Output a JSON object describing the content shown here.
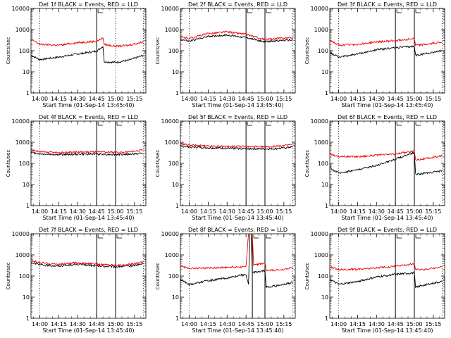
{
  "page": {
    "xtick_labels": [
      "14:00",
      "14:15",
      "14:30",
      "14:45",
      "15:00",
      "15:15"
    ],
    "y_axis_label": "Counts/sec",
    "x_axis_label": "Start Time (01-Sep-14 13:45:40)"
  },
  "chart_data": [
    {
      "type": "line",
      "title": "Det 1f BLACK = Events, RED = LLD",
      "xlabel": "Start Time (01-Sep-14 13:45:40)",
      "ylabel": "Counts/sec",
      "yscale": "log",
      "ylim": [
        1,
        10000
      ],
      "xlim": [
        "13:53",
        "15:24"
      ],
      "ytick_labels": [
        "1",
        "10",
        "100",
        "1000",
        "10000"
      ],
      "xtick_labels": [
        "14:00",
        "14:15",
        "14:30",
        "14:45",
        "15:00",
        "15:15"
      ],
      "dotted_lines": [
        "14:00",
        "15:00",
        "15:22"
      ],
      "solid_lines": [
        "14:45"
      ],
      "series": [
        {
          "color": "#000000",
          "x": [
            "13:53",
            "14:00",
            "14:15",
            "14:30",
            "14:45",
            "14:50",
            "14:51",
            "15:00",
            "15:10",
            "15:22"
          ],
          "y": [
            60,
            38,
            50,
            70,
            95,
            160,
            30,
            28,
            35,
            60
          ]
        },
        {
          "color": "#ee0000",
          "x": [
            "13:53",
            "14:00",
            "14:15",
            "14:30",
            "14:45",
            "14:50",
            "14:51",
            "15:00",
            "15:10",
            "15:22"
          ],
          "y": [
            350,
            200,
            180,
            240,
            280,
            400,
            200,
            160,
            180,
            260
          ]
        }
      ]
    },
    {
      "type": "line",
      "title": "Det 2f BLACK = Events, RED = LLD",
      "xlabel": "Start Time (01-Sep-14 13:45:40)",
      "ylabel": "Counts/sec",
      "yscale": "log",
      "ylim": [
        1,
        10000
      ],
      "xlim": [
        "13:53",
        "15:24"
      ],
      "ytick_labels": [
        "1",
        "10",
        "100",
        "1000",
        "10000"
      ],
      "xtick_labels": [
        "14:00",
        "14:15",
        "14:30",
        "14:45",
        "15:00",
        "15:15"
      ],
      "dotted_lines": [
        "14:00",
        "15:22"
      ],
      "solid_lines": [
        "14:45",
        "15:00"
      ],
      "series": [
        {
          "color": "#000000",
          "x": [
            "13:53",
            "14:00",
            "14:15",
            "14:30",
            "14:45",
            "15:00",
            "15:10",
            "15:22"
          ],
          "y": [
            350,
            280,
            480,
            550,
            420,
            260,
            300,
            320
          ]
        },
        {
          "color": "#ee0000",
          "x": [
            "13:53",
            "14:00",
            "14:15",
            "14:30",
            "14:45",
            "15:00",
            "15:10",
            "15:22"
          ],
          "y": [
            450,
            380,
            650,
            780,
            600,
            330,
            380,
            420
          ]
        }
      ]
    },
    {
      "type": "line",
      "title": "Det 3f BLACK = Events, RED = LLD",
      "xlabel": "Start Time (01-Sep-14 13:45:40)",
      "ylabel": "Counts/sec",
      "yscale": "log",
      "ylim": [
        1,
        10000
      ],
      "xlim": [
        "13:53",
        "15:24"
      ],
      "ytick_labels": [
        "1",
        "10",
        "100",
        "1000",
        "10000"
      ],
      "xtick_labels": [
        "14:00",
        "14:15",
        "14:30",
        "14:45",
        "15:00",
        "15:15"
      ],
      "dotted_lines": [
        "14:00",
        "15:22"
      ],
      "solid_lines": [
        "14:45",
        "15:00"
      ],
      "series": [
        {
          "color": "#000000",
          "x": [
            "13:53",
            "14:00",
            "14:15",
            "14:30",
            "14:45",
            "15:00",
            "15:01",
            "15:10",
            "15:22"
          ],
          "y": [
            80,
            50,
            70,
            110,
            140,
            160,
            60,
            75,
            100
          ]
        },
        {
          "color": "#ee0000",
          "x": [
            "13:53",
            "14:00",
            "14:15",
            "14:30",
            "14:45",
            "15:00",
            "15:01",
            "15:10",
            "15:22"
          ],
          "y": [
            320,
            180,
            200,
            260,
            300,
            380,
            180,
            200,
            260
          ]
        }
      ]
    },
    {
      "type": "line",
      "title": "Det 4f BLACK = Events, RED = LLD",
      "xlabel": "Start Time (01-Sep-14 13:45:40)",
      "ylabel": "Counts/sec",
      "yscale": "log",
      "ylim": [
        1,
        10000
      ],
      "xlim": [
        "13:53",
        "15:24"
      ],
      "ytick_labels": [
        "1",
        "10",
        "100",
        "1000",
        "10000"
      ],
      "xtick_labels": [
        "14:00",
        "14:15",
        "14:30",
        "14:45",
        "15:00",
        "15:15"
      ],
      "dotted_lines": [
        "14:00",
        "15:22"
      ],
      "solid_lines": [
        "14:45",
        "15:00"
      ],
      "series": [
        {
          "color": "#000000",
          "x": [
            "13:53",
            "14:00",
            "14:15",
            "14:30",
            "14:45",
            "15:00",
            "15:10",
            "15:22"
          ],
          "y": [
            330,
            280,
            260,
            270,
            280,
            260,
            270,
            300
          ]
        },
        {
          "color": "#ee0000",
          "x": [
            "13:53",
            "14:00",
            "14:15",
            "14:30",
            "14:45",
            "15:00",
            "15:10",
            "15:22"
          ],
          "y": [
            450,
            350,
            320,
            340,
            350,
            330,
            340,
            440
          ]
        }
      ]
    },
    {
      "type": "line",
      "title": "Det 5f BLACK = Events, RED = LLD",
      "xlabel": "Start Time (01-Sep-14 13:45:40)",
      "ylabel": "Counts/sec",
      "yscale": "log",
      "ylim": [
        1,
        10000
      ],
      "xlim": [
        "13:53",
        "15:24"
      ],
      "ytick_labels": [
        "1",
        "10",
        "100",
        "1000",
        "10000"
      ],
      "xtick_labels": [
        "14:00",
        "14:15",
        "14:30",
        "14:45",
        "15:00",
        "15:15"
      ],
      "dotted_lines": [
        "14:00",
        "15:22"
      ],
      "solid_lines": [
        "14:45",
        "15:00"
      ],
      "series": [
        {
          "color": "#000000",
          "x": [
            "13:53",
            "14:00",
            "14:15",
            "14:30",
            "14:45",
            "15:00",
            "15:10",
            "15:22"
          ],
          "y": [
            650,
            600,
            550,
            520,
            500,
            480,
            500,
            600
          ]
        },
        {
          "color": "#ee0000",
          "x": [
            "13:53",
            "14:00",
            "14:15",
            "14:30",
            "14:45",
            "15:00",
            "15:10",
            "15:22"
          ],
          "y": [
            850,
            750,
            650,
            630,
            620,
            600,
            640,
            800
          ]
        }
      ]
    },
    {
      "type": "line",
      "title": "Det 6f BLACK = Events, RED = LLD",
      "xlabel": "Start Time (01-Sep-14 13:45:40)",
      "ylabel": "Counts/sec",
      "yscale": "log",
      "ylim": [
        1,
        10000
      ],
      "xlim": [
        "13:53",
        "15:24"
      ],
      "ytick_labels": [
        "1",
        "10",
        "100",
        "1000",
        "10000"
      ],
      "xtick_labels": [
        "14:00",
        "14:15",
        "14:30",
        "14:45",
        "15:00",
        "15:15"
      ],
      "dotted_lines": [
        "14:00",
        "15:22"
      ],
      "solid_lines": [
        "14:45",
        "15:00"
      ],
      "series": [
        {
          "color": "#000000",
          "x": [
            "13:53",
            "14:00",
            "14:15",
            "14:30",
            "14:45",
            "15:00",
            "15:01",
            "15:10",
            "15:22"
          ],
          "y": [
            60,
            35,
            50,
            80,
            160,
            330,
            30,
            35,
            45
          ]
        },
        {
          "color": "#ee0000",
          "x": [
            "13:53",
            "14:00",
            "14:15",
            "14:30",
            "14:45",
            "15:00",
            "15:01",
            "15:10",
            "15:22"
          ],
          "y": [
            280,
            210,
            210,
            240,
            280,
            380,
            150,
            170,
            230
          ]
        }
      ]
    },
    {
      "type": "line",
      "title": "Det 7f BLACK = Events, RED = LLD",
      "xlabel": "Start Time (01-Sep-14 13:45:40)",
      "ylabel": "Counts/sec",
      "yscale": "log",
      "ylim": [
        1,
        10000
      ],
      "xlim": [
        "13:53",
        "15:24"
      ],
      "ytick_labels": [
        "1",
        "10",
        "100",
        "1000",
        "10000"
      ],
      "xtick_labels": [
        "14:00",
        "14:15",
        "14:30",
        "14:45",
        "15:00",
        "15:15"
      ],
      "dotted_lines": [
        "14:00",
        "15:22"
      ],
      "solid_lines": [
        "14:45",
        "15:00"
      ],
      "series": [
        {
          "color": "#000000",
          "x": [
            "13:53",
            "14:00",
            "14:15",
            "14:30",
            "14:45",
            "15:00",
            "15:10",
            "15:22"
          ],
          "y": [
            450,
            340,
            300,
            360,
            300,
            280,
            290,
            380
          ]
        },
        {
          "color": "#ee0000",
          "x": [
            "13:53",
            "14:00",
            "14:15",
            "14:30",
            "14:45",
            "15:00",
            "15:10",
            "15:22"
          ],
          "y": [
            560,
            420,
            360,
            420,
            360,
            330,
            340,
            480
          ]
        }
      ]
    },
    {
      "type": "line",
      "title": "Det 8f BLACK = Events, RED = LLD",
      "xlabel": "Start Time (01-Sep-14 13:45:40)",
      "ylabel": "Counts/sec",
      "yscale": "log",
      "ylim": [
        1,
        10000
      ],
      "xlim": [
        "13:53",
        "15:24"
      ],
      "ytick_labels": [
        "1",
        "10",
        "100",
        "1000",
        "10000"
      ],
      "xtick_labels": [
        "14:00",
        "14:15",
        "14:30",
        "14:45",
        "15:00",
        "15:15"
      ],
      "dotted_lines": [
        "14:00",
        "15:22"
      ],
      "solid_lines": [
        "14:50",
        "15:00"
      ],
      "series": [
        {
          "color": "#000000",
          "x": [
            "13:53",
            "14:00",
            "14:15",
            "14:30",
            "14:45",
            "14:47",
            "14:48",
            "14:49",
            "14:50",
            "14:51",
            "15:00",
            "15:01",
            "15:10",
            "15:22"
          ],
          "y": [
            70,
            40,
            60,
            80,
            120,
            40,
            10000,
            10000,
            140,
            150,
            180,
            30,
            35,
            50
          ]
        },
        {
          "color": "#ee0000",
          "x": [
            "13:53",
            "14:00",
            "14:15",
            "14:30",
            "14:45",
            "14:47",
            "14:48",
            "14:49",
            "14:50",
            "14:51",
            "15:00",
            "15:01",
            "15:10",
            "15:22"
          ],
          "y": [
            300,
            230,
            240,
            260,
            280,
            10000,
            10000,
            10000,
            10000,
            320,
            420,
            180,
            190,
            250
          ]
        }
      ]
    },
    {
      "type": "line",
      "title": "Det 9f BLACK = Events, RED = LLD",
      "xlabel": "Start Time (01-Sep-14 13:45:40)",
      "ylabel": "Counts/sec",
      "yscale": "log",
      "ylim": [
        1,
        10000
      ],
      "xlim": [
        "13:53",
        "15:24"
      ],
      "ytick_labels": [
        "1",
        "10",
        "100",
        "1000",
        "10000"
      ],
      "xtick_labels": [
        "14:00",
        "14:15",
        "14:30",
        "14:45",
        "15:00",
        "15:15"
      ],
      "dotted_lines": [
        "14:00",
        "15:22"
      ],
      "solid_lines": [
        "14:45",
        "15:00"
      ],
      "series": [
        {
          "color": "#000000",
          "x": [
            "13:53",
            "14:00",
            "14:15",
            "14:30",
            "14:45",
            "15:00",
            "15:01",
            "15:10",
            "15:22"
          ],
          "y": [
            70,
            40,
            55,
            90,
            120,
            140,
            30,
            40,
            55
          ]
        },
        {
          "color": "#ee0000",
          "x": [
            "13:53",
            "14:00",
            "14:15",
            "14:30",
            "14:45",
            "15:00",
            "15:01",
            "15:10",
            "15:22"
          ],
          "y": [
            280,
            200,
            210,
            240,
            290,
            380,
            200,
            210,
            270
          ]
        }
      ]
    }
  ]
}
